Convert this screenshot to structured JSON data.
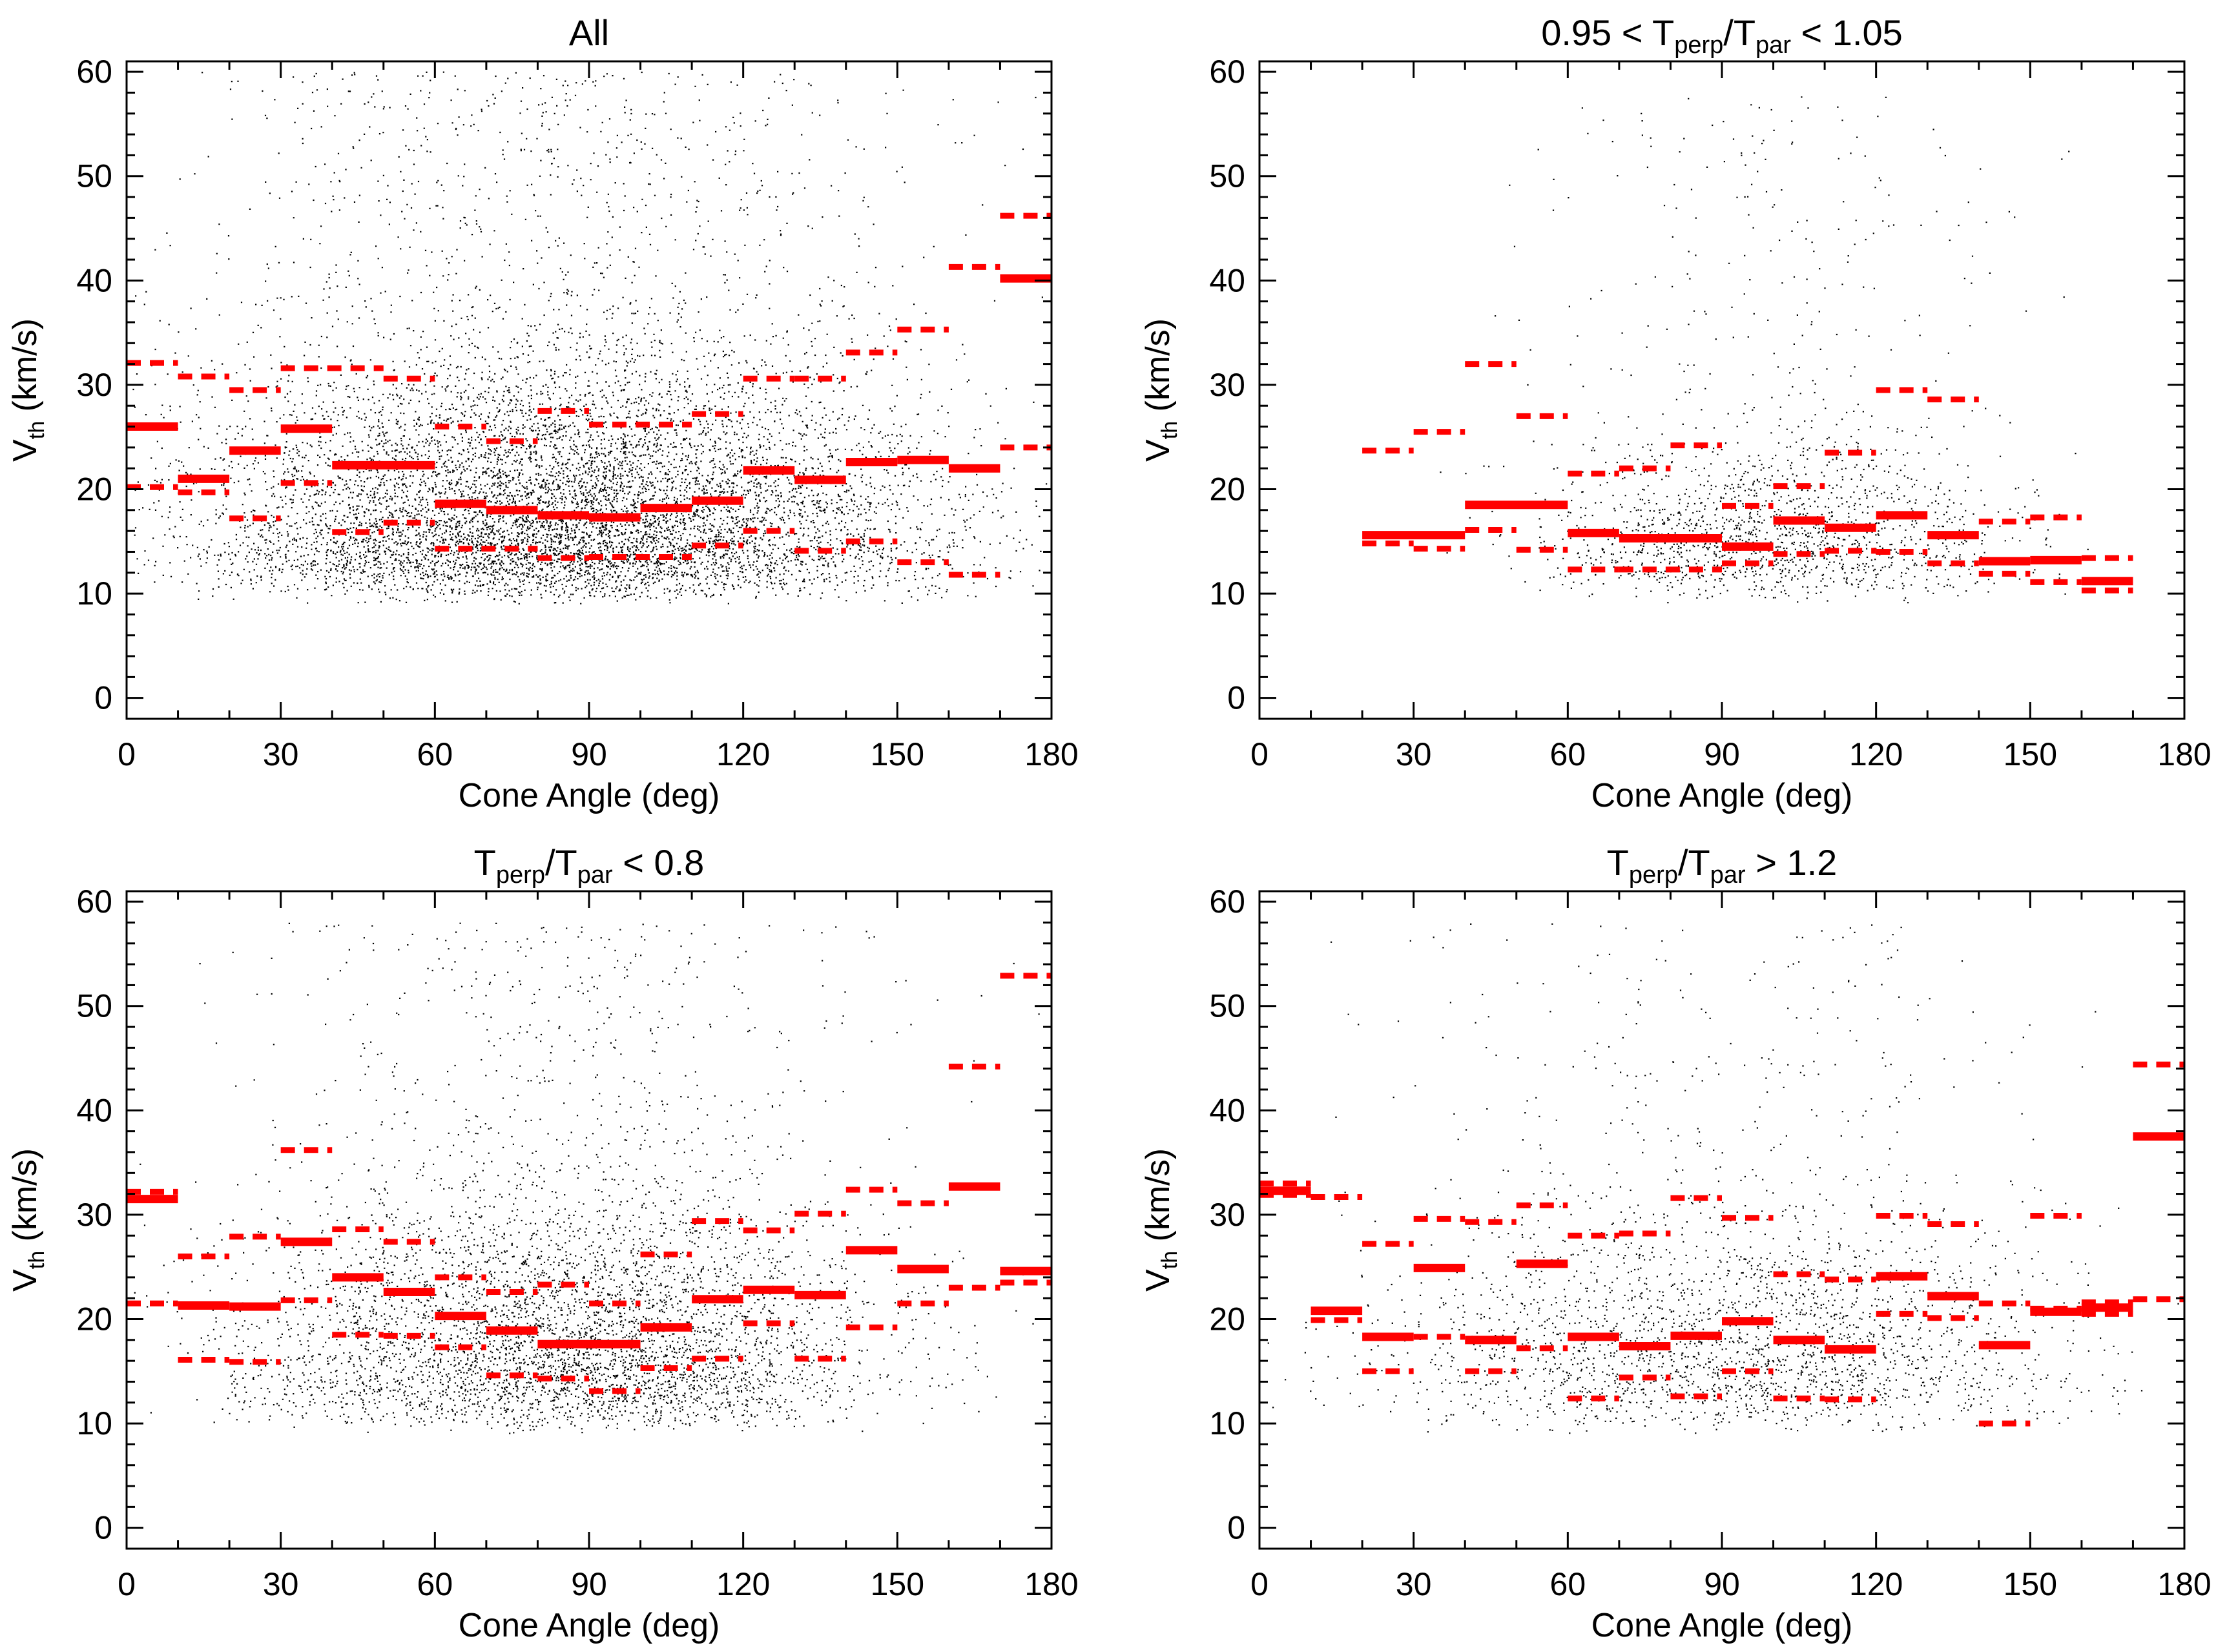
{
  "colors": {
    "stat": "#ff0000",
    "scatter": "#000000",
    "axis": "#000000",
    "background": "#ffffff"
  },
  "chart_data": [
    {
      "type": "scatter",
      "title": "All",
      "title_parts": [
        {
          "text": "All"
        }
      ],
      "xlabel": "Cone Angle (deg)",
      "ylabel_main": "V",
      "ylabel_sub": "th",
      "ylabel_tail": " (km/s)",
      "xlim": [
        0,
        180
      ],
      "ylim": [
        -2,
        61
      ],
      "xticks": [
        0,
        30,
        60,
        90,
        120,
        150,
        180
      ],
      "yticks": [
        0,
        10,
        20,
        30,
        40,
        50,
        60
      ],
      "scatter": {
        "center_x": 85,
        "spread_x": 70,
        "center_y": 19,
        "spread_y": 11,
        "min_y": 9,
        "max_y": 60,
        "density": 9000,
        "seed": 11
      },
      "medians": [
        [
          0,
          10,
          26.0
        ],
        [
          10,
          20,
          21.0
        ],
        [
          20,
          30,
          23.7
        ],
        [
          30,
          40,
          25.8
        ],
        [
          40,
          60,
          22.3
        ],
        [
          60,
          70,
          18.6
        ],
        [
          70,
          80,
          18.0
        ],
        [
          80,
          90,
          17.5
        ],
        [
          90,
          100,
          17.3
        ],
        [
          100,
          110,
          18.2
        ],
        [
          110,
          120,
          18.9
        ],
        [
          120,
          130,
          21.8
        ],
        [
          130,
          140,
          20.9
        ],
        [
          140,
          150,
          22.6
        ],
        [
          150,
          160,
          22.8
        ],
        [
          160,
          170,
          22.0
        ],
        [
          170,
          180,
          40.2
        ]
      ],
      "upper": [
        [
          0,
          10,
          32.1
        ],
        [
          10,
          20,
          30.8
        ],
        [
          20,
          30,
          29.5
        ],
        [
          30,
          50,
          31.6
        ],
        [
          50,
          60,
          30.6
        ],
        [
          60,
          70,
          26.0
        ],
        [
          70,
          80,
          24.6
        ],
        [
          80,
          90,
          27.5
        ],
        [
          90,
          110,
          26.2
        ],
        [
          110,
          120,
          27.2
        ],
        [
          120,
          130,
          30.6
        ],
        [
          130,
          140,
          30.6
        ],
        [
          140,
          150,
          33.1
        ],
        [
          150,
          160,
          35.3
        ],
        [
          160,
          170,
          41.3
        ],
        [
          170,
          180,
          46.2
        ]
      ],
      "lower": [
        [
          0,
          10,
          20.2
        ],
        [
          10,
          20,
          19.7
        ],
        [
          20,
          30,
          17.2
        ],
        [
          30,
          40,
          20.6
        ],
        [
          40,
          50,
          15.9
        ],
        [
          50,
          60,
          16.8
        ],
        [
          60,
          80,
          14.3
        ],
        [
          80,
          90,
          13.4
        ],
        [
          90,
          110,
          13.5
        ],
        [
          110,
          120,
          14.6
        ],
        [
          120,
          130,
          16.0
        ],
        [
          130,
          140,
          14.1
        ],
        [
          140,
          150,
          15.0
        ],
        [
          150,
          160,
          13.0
        ],
        [
          160,
          170,
          11.8
        ],
        [
          170,
          180,
          24.0
        ]
      ]
    },
    {
      "type": "scatter",
      "title": "0.95 < Tperp/Tpar < 1.05",
      "title_parts": [
        {
          "text": "0.95 < T"
        },
        {
          "text": "perp",
          "sub": true
        },
        {
          "text": "/T"
        },
        {
          "text": "par",
          "sub": true
        },
        {
          "text": " < 1.05"
        }
      ],
      "xlabel": "Cone Angle (deg)",
      "ylabel_main": "V",
      "ylabel_sub": "th",
      "ylabel_tail": " (km/s)",
      "xlim": [
        0,
        180
      ],
      "ylim": [
        -2,
        61
      ],
      "xticks": [
        0,
        30,
        60,
        90,
        120,
        150,
        180
      ],
      "yticks": [
        0,
        10,
        20,
        30,
        40,
        50,
        60
      ],
      "scatter": {
        "center_x": 100,
        "spread_x": 45,
        "center_y": 17,
        "spread_y": 7,
        "min_y": 9,
        "max_y": 58,
        "density": 1800,
        "seed": 23
      },
      "medians": [
        [
          20,
          40,
          15.6
        ],
        [
          40,
          60,
          18.5
        ],
        [
          60,
          70,
          15.8
        ],
        [
          70,
          90,
          15.3
        ],
        [
          90,
          100,
          14.5
        ],
        [
          100,
          110,
          17.0
        ],
        [
          110,
          120,
          16.3
        ],
        [
          120,
          130,
          17.5
        ],
        [
          130,
          140,
          15.6
        ],
        [
          140,
          150,
          13.1
        ],
        [
          150,
          160,
          13.2
        ],
        [
          160,
          170,
          11.2
        ]
      ],
      "upper": [
        [
          20,
          30,
          23.7
        ],
        [
          30,
          40,
          25.5
        ],
        [
          40,
          50,
          32.0
        ],
        [
          50,
          60,
          27.0
        ],
        [
          60,
          70,
          21.5
        ],
        [
          70,
          80,
          22.0
        ],
        [
          80,
          90,
          24.2
        ],
        [
          90,
          100,
          18.4
        ],
        [
          100,
          110,
          20.3
        ],
        [
          110,
          120,
          23.5
        ],
        [
          120,
          130,
          29.5
        ],
        [
          130,
          140,
          28.6
        ],
        [
          140,
          150,
          16.9
        ],
        [
          150,
          160,
          17.3
        ],
        [
          160,
          170,
          13.4
        ]
      ],
      "lower": [
        [
          20,
          30,
          14.8
        ],
        [
          30,
          40,
          14.3
        ],
        [
          40,
          50,
          16.1
        ],
        [
          50,
          60,
          14.2
        ],
        [
          60,
          70,
          12.3
        ],
        [
          70,
          90,
          12.3
        ],
        [
          90,
          100,
          12.9
        ],
        [
          100,
          110,
          13.8
        ],
        [
          110,
          120,
          14.1
        ],
        [
          120,
          130,
          14.0
        ],
        [
          130,
          140,
          12.9
        ],
        [
          140,
          150,
          11.9
        ],
        [
          150,
          160,
          11.1
        ],
        [
          160,
          170,
          10.3
        ]
      ]
    },
    {
      "type": "scatter",
      "title": "Tperp/Tpar < 0.8",
      "title_parts": [
        {
          "text": "T"
        },
        {
          "text": "perp",
          "sub": true
        },
        {
          "text": "/T"
        },
        {
          "text": "par",
          "sub": true
        },
        {
          "text": " < 0.8"
        }
      ],
      "xlabel": "Cone Angle (deg)",
      "ylabel_main": "V",
      "ylabel_sub": "th",
      "ylabel_tail": " (km/s)",
      "xlim": [
        0,
        180
      ],
      "ylim": [
        -2,
        61
      ],
      "xticks": [
        0,
        30,
        60,
        90,
        120,
        150,
        180
      ],
      "yticks": [
        0,
        10,
        20,
        30,
        40,
        50,
        60
      ],
      "scatter": {
        "center_x": 85,
        "spread_x": 60,
        "center_y": 21,
        "spread_y": 11,
        "min_y": 9,
        "max_y": 58,
        "density": 5000,
        "seed": 37
      },
      "medians": [
        [
          0,
          10,
          31.5
        ],
        [
          10,
          20,
          21.3
        ],
        [
          20,
          30,
          21.2
        ],
        [
          30,
          40,
          27.4
        ],
        [
          40,
          50,
          24.0
        ],
        [
          50,
          60,
          22.6
        ],
        [
          60,
          70,
          20.3
        ],
        [
          70,
          80,
          18.9
        ],
        [
          80,
          100,
          17.6
        ],
        [
          100,
          110,
          19.2
        ],
        [
          110,
          120,
          21.9
        ],
        [
          120,
          130,
          22.8
        ],
        [
          130,
          140,
          22.3
        ],
        [
          140,
          150,
          26.6
        ],
        [
          150,
          160,
          24.8
        ],
        [
          160,
          170,
          32.7
        ],
        [
          170,
          180,
          24.6
        ]
      ],
      "upper": [
        [
          0,
          10,
          32.2
        ],
        [
          10,
          20,
          26.0
        ],
        [
          20,
          30,
          27.9
        ],
        [
          30,
          40,
          36.2
        ],
        [
          40,
          50,
          28.6
        ],
        [
          50,
          60,
          27.4
        ],
        [
          60,
          70,
          24.0
        ],
        [
          70,
          80,
          22.6
        ],
        [
          80,
          90,
          23.3
        ],
        [
          90,
          100,
          21.5
        ],
        [
          100,
          110,
          26.2
        ],
        [
          110,
          120,
          29.4
        ],
        [
          120,
          130,
          28.5
        ],
        [
          130,
          140,
          30.1
        ],
        [
          140,
          150,
          32.4
        ],
        [
          150,
          160,
          31.1
        ],
        [
          160,
          170,
          44.2
        ],
        [
          170,
          180,
          52.9
        ]
      ],
      "lower": [
        [
          0,
          10,
          21.5
        ],
        [
          10,
          20,
          16.1
        ],
        [
          20,
          30,
          15.9
        ],
        [
          30,
          40,
          21.8
        ],
        [
          40,
          50,
          18.5
        ],
        [
          50,
          60,
          18.4
        ],
        [
          60,
          70,
          17.3
        ],
        [
          70,
          80,
          14.6
        ],
        [
          80,
          90,
          14.3
        ],
        [
          90,
          100,
          13.1
        ],
        [
          100,
          110,
          15.3
        ],
        [
          110,
          120,
          16.2
        ],
        [
          120,
          130,
          19.6
        ],
        [
          130,
          140,
          16.2
        ],
        [
          140,
          150,
          19.2
        ],
        [
          150,
          160,
          21.5
        ],
        [
          160,
          170,
          23.0
        ],
        [
          170,
          180,
          23.5
        ]
      ]
    },
    {
      "type": "scatter",
      "title": "Tperp/Tpar > 1.2",
      "title_parts": [
        {
          "text": "T"
        },
        {
          "text": "perp",
          "sub": true
        },
        {
          "text": "/T"
        },
        {
          "text": "par",
          "sub": true
        },
        {
          "text": " > 1.2"
        }
      ],
      "xlabel": "Cone Angle (deg)",
      "ylabel_main": "V",
      "ylabel_sub": "th",
      "ylabel_tail": " (km/s)",
      "xlim": [
        0,
        180
      ],
      "ylim": [
        -2,
        61
      ],
      "xticks": [
        0,
        30,
        60,
        90,
        120,
        150,
        180
      ],
      "yticks": [
        0,
        10,
        20,
        30,
        40,
        50,
        60
      ],
      "scatter": {
        "center_x": 90,
        "spread_x": 65,
        "center_y": 22,
        "spread_y": 10,
        "min_y": 9,
        "max_y": 58,
        "density": 2600,
        "seed": 53
      },
      "medians": [
        [
          0,
          10,
          32.3
        ],
        [
          10,
          20,
          20.8
        ],
        [
          20,
          30,
          18.3
        ],
        [
          30,
          40,
          24.9
        ],
        [
          40,
          50,
          18.0
        ],
        [
          50,
          60,
          25.3
        ],
        [
          60,
          70,
          18.3
        ],
        [
          70,
          80,
          17.4
        ],
        [
          80,
          90,
          18.4
        ],
        [
          90,
          100,
          19.8
        ],
        [
          100,
          110,
          18.0
        ],
        [
          110,
          120,
          17.1
        ],
        [
          120,
          130,
          24.1
        ],
        [
          130,
          140,
          22.2
        ],
        [
          140,
          150,
          17.5
        ],
        [
          150,
          160,
          20.7
        ],
        [
          160,
          170,
          21.1
        ],
        [
          170,
          180,
          37.5
        ]
      ],
      "upper": [
        [
          0,
          10,
          33.0
        ],
        [
          10,
          20,
          31.7
        ],
        [
          20,
          30,
          27.2
        ],
        [
          30,
          40,
          29.6
        ],
        [
          40,
          50,
          29.3
        ],
        [
          50,
          60,
          30.9
        ],
        [
          60,
          70,
          28.0
        ],
        [
          70,
          80,
          28.2
        ],
        [
          80,
          90,
          31.6
        ],
        [
          90,
          100,
          29.7
        ],
        [
          100,
          110,
          24.3
        ],
        [
          110,
          120,
          23.8
        ],
        [
          120,
          130,
          29.9
        ],
        [
          130,
          140,
          29.1
        ],
        [
          140,
          150,
          21.5
        ],
        [
          150,
          160,
          29.9
        ],
        [
          160,
          170,
          21.6
        ],
        [
          170,
          180,
          44.4
        ]
      ],
      "lower": [
        [
          0,
          10,
          31.9
        ],
        [
          10,
          20,
          19.9
        ],
        [
          20,
          30,
          15.0
        ],
        [
          30,
          40,
          18.3
        ],
        [
          40,
          50,
          15.0
        ],
        [
          50,
          60,
          17.2
        ],
        [
          60,
          70,
          12.4
        ],
        [
          70,
          80,
          14.4
        ],
        [
          80,
          90,
          12.6
        ],
        [
          90,
          100,
          15.0
        ],
        [
          100,
          110,
          12.4
        ],
        [
          110,
          120,
          12.3
        ],
        [
          120,
          130,
          20.5
        ],
        [
          130,
          140,
          20.1
        ],
        [
          140,
          150,
          10.0
        ],
        [
          150,
          160,
          21.0
        ],
        [
          160,
          170,
          20.5
        ],
        [
          170,
          180,
          21.9
        ]
      ]
    }
  ]
}
